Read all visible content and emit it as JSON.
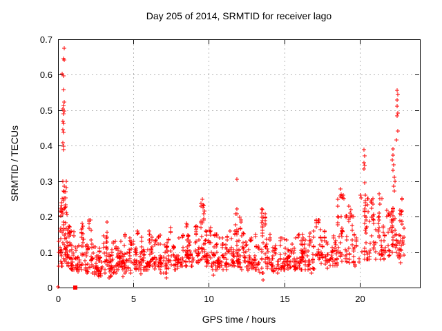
{
  "title": "Day 205 of 2014, SRMTID for receiver lago",
  "chart_data": {
    "type": "scatter",
    "title": "Day 205 of 2014, SRMTID for receiver lago",
    "xlabel": "GPS time / hours",
    "ylabel": "SRMTID / TECUs",
    "xlim": [
      0,
      24
    ],
    "ylim": [
      0,
      0.7
    ],
    "x_ticks": [
      0,
      5,
      10,
      15,
      20
    ],
    "y_ticks": [
      0,
      0.1,
      0.2,
      0.3,
      0.4,
      0.5,
      0.6,
      0.7
    ],
    "grid": true,
    "legend": "none",
    "marker": "plus",
    "marker_color": "#ff0000",
    "grid_color": "#b4b4b4",
    "border_color": "#000000",
    "background_color": "#ffffff",
    "seed": 42,
    "band_segments": [
      [
        0.05,
        0.3,
        28,
        0.06,
        0.25
      ],
      [
        0.3,
        0.55,
        36,
        0.07,
        0.3
      ],
      [
        0.55,
        0.8,
        30,
        0.06,
        0.21
      ],
      [
        0.8,
        1.1,
        26,
        0.05,
        0.16
      ],
      [
        1.1,
        1.45,
        22,
        0.045,
        0.135
      ],
      [
        1.45,
        1.7,
        20,
        0.05,
        0.185
      ],
      [
        1.7,
        2.0,
        20,
        0.04,
        0.12
      ],
      [
        2.0,
        2.3,
        22,
        0.04,
        0.19
      ],
      [
        2.3,
        2.7,
        26,
        0.035,
        0.115
      ],
      [
        2.7,
        3.0,
        24,
        0.03,
        0.11
      ],
      [
        3.0,
        3.3,
        26,
        0.04,
        0.185
      ],
      [
        3.3,
        3.6,
        24,
        0.03,
        0.12
      ],
      [
        3.6,
        4.0,
        28,
        0.04,
        0.13
      ],
      [
        4.0,
        4.4,
        28,
        0.05,
        0.14
      ],
      [
        4.4,
        4.8,
        26,
        0.04,
        0.15
      ],
      [
        4.8,
        5.2,
        26,
        0.05,
        0.13
      ],
      [
        5.2,
        5.6,
        28,
        0.05,
        0.16
      ],
      [
        5.6,
        6.0,
        26,
        0.05,
        0.14
      ],
      [
        6.0,
        6.4,
        28,
        0.06,
        0.16
      ],
      [
        6.4,
        6.8,
        26,
        0.05,
        0.15
      ],
      [
        6.8,
        7.2,
        26,
        0.04,
        0.13
      ],
      [
        7.2,
        7.7,
        28,
        0.05,
        0.17
      ],
      [
        7.7,
        8.2,
        26,
        0.05,
        0.14
      ],
      [
        8.2,
        8.6,
        28,
        0.06,
        0.19
      ],
      [
        8.6,
        9.1,
        28,
        0.06,
        0.16
      ],
      [
        9.1,
        9.45,
        26,
        0.07,
        0.18
      ],
      [
        9.45,
        9.8,
        30,
        0.08,
        0.25
      ],
      [
        9.8,
        10.2,
        28,
        0.06,
        0.17
      ],
      [
        10.2,
        10.6,
        26,
        0.05,
        0.15
      ],
      [
        10.6,
        11.0,
        26,
        0.05,
        0.14
      ],
      [
        11.0,
        11.4,
        26,
        0.05,
        0.15
      ],
      [
        11.4,
        11.75,
        26,
        0.05,
        0.16
      ],
      [
        11.75,
        12.05,
        28,
        0.06,
        0.22
      ],
      [
        12.05,
        12.5,
        28,
        0.05,
        0.19
      ],
      [
        12.5,
        12.9,
        26,
        0.04,
        0.14
      ],
      [
        12.9,
        13.3,
        26,
        0.05,
        0.15
      ],
      [
        13.3,
        13.75,
        28,
        0.04,
        0.22
      ],
      [
        13.75,
        14.2,
        26,
        0.05,
        0.15
      ],
      [
        14.2,
        14.6,
        26,
        0.04,
        0.14
      ],
      [
        14.6,
        15.0,
        26,
        0.05,
        0.14
      ],
      [
        15.0,
        15.4,
        26,
        0.05,
        0.15
      ],
      [
        15.4,
        15.8,
        26,
        0.05,
        0.14
      ],
      [
        15.8,
        16.2,
        28,
        0.05,
        0.175
      ],
      [
        16.2,
        16.6,
        26,
        0.05,
        0.15
      ],
      [
        16.6,
        17.0,
        26,
        0.05,
        0.16
      ],
      [
        17.0,
        17.5,
        28,
        0.06,
        0.19
      ],
      [
        17.5,
        18.0,
        26,
        0.05,
        0.16
      ],
      [
        18.0,
        18.5,
        28,
        0.06,
        0.17
      ],
      [
        18.5,
        19.05,
        34,
        0.07,
        0.28
      ],
      [
        19.05,
        19.5,
        28,
        0.07,
        0.23
      ],
      [
        19.5,
        20.0,
        28,
        0.06,
        0.2
      ],
      [
        20.0,
        20.5,
        30,
        0.08,
        0.26
      ],
      [
        20.5,
        21.0,
        30,
        0.08,
        0.25
      ],
      [
        21.0,
        21.5,
        30,
        0.08,
        0.26
      ],
      [
        21.5,
        22.1,
        30,
        0.08,
        0.22
      ],
      [
        22.1,
        22.5,
        32,
        0.09,
        0.25
      ],
      [
        22.5,
        22.95,
        34,
        0.07,
        0.25
      ]
    ],
    "outlier_points": [
      [
        0.4,
        0.675
      ],
      [
        0.36,
        0.646
      ],
      [
        0.4,
        0.641
      ],
      [
        0.27,
        0.603
      ],
      [
        0.38,
        0.597
      ],
      [
        0.36,
        0.558
      ],
      [
        0.4,
        0.523
      ],
      [
        0.37,
        0.513
      ],
      [
        0.33,
        0.503
      ],
      [
        0.4,
        0.497
      ],
      [
        0.35,
        0.49
      ],
      [
        0.33,
        0.468
      ],
      [
        0.345,
        0.462
      ],
      [
        0.3,
        0.446
      ],
      [
        0.38,
        0.437
      ],
      [
        0.33,
        0.409
      ],
      [
        0.36,
        0.398
      ],
      [
        0.38,
        0.388
      ],
      [
        0.31,
        0.299
      ],
      [
        0.4,
        0.286
      ],
      [
        0.35,
        0.273
      ],
      [
        0.25,
        0.24
      ],
      [
        0.45,
        0.226
      ],
      [
        0.55,
        0.212
      ],
      [
        9.55,
        0.248
      ],
      [
        9.6,
        0.233
      ],
      [
        11.84,
        0.305
      ],
      [
        11.86,
        0.222
      ],
      [
        11.85,
        0.208
      ],
      [
        13.5,
        0.222
      ],
      [
        13.52,
        0.21
      ],
      [
        18.75,
        0.278
      ],
      [
        18.8,
        0.263
      ],
      [
        18.85,
        0.252
      ],
      [
        20.3,
        0.388
      ],
      [
        20.33,
        0.372
      ],
      [
        20.28,
        0.352
      ],
      [
        20.35,
        0.344
      ],
      [
        20.31,
        0.334
      ],
      [
        20.34,
        0.296
      ],
      [
        21.3,
        0.264
      ],
      [
        21.33,
        0.251
      ],
      [
        22.2,
        0.39
      ],
      [
        22.23,
        0.374
      ],
      [
        22.18,
        0.359
      ],
      [
        22.25,
        0.346
      ],
      [
        22.21,
        0.331
      ],
      [
        22.3,
        0.312
      ],
      [
        22.34,
        0.3
      ],
      [
        22.28,
        0.286
      ],
      [
        22.31,
        0.272
      ],
      [
        22.5,
        0.556
      ],
      [
        22.52,
        0.545
      ],
      [
        22.49,
        0.529
      ],
      [
        22.51,
        0.512
      ],
      [
        22.53,
        0.491
      ],
      [
        22.5,
        0.484
      ],
      [
        22.55,
        0.441
      ],
      [
        22.46,
        0.416
      ],
      [
        3.4,
        0.027
      ],
      [
        4.3,
        0.032
      ],
      [
        5.5,
        0.038
      ],
      [
        7.2,
        0.028
      ],
      [
        10.3,
        0.035
      ],
      [
        13.6,
        0.022
      ],
      [
        16.8,
        0.04
      ]
    ],
    "special_points": [
      {
        "x": 1.15,
        "y": 0.0,
        "marker": "filled-square"
      },
      {
        "x": 0.02,
        "y": 0.002,
        "marker": "plus"
      }
    ]
  }
}
